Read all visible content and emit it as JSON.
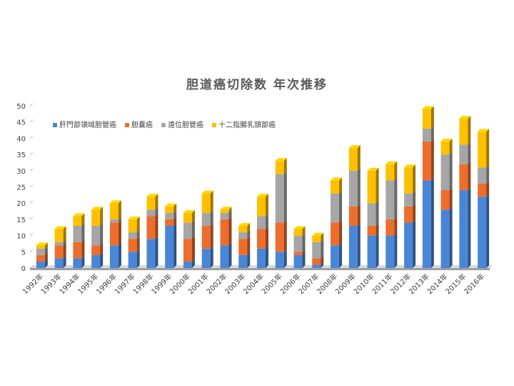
{
  "chart_data": {
    "type": "bar",
    "stacked": true,
    "title": "胆道癌切除数  年次推移",
    "categories": [
      "1992年",
      "1993年",
      "1994年",
      "1995年",
      "1996年",
      "1997年",
      "1998年",
      "1999年",
      "2000年",
      "2001年",
      "2002年",
      "2003年",
      "2004年",
      "2005年",
      "2006年",
      "2007年",
      "2008年",
      "2009年",
      "2010年",
      "2011年",
      "2012年",
      "2013年",
      "2014年",
      "2015年",
      "2016年"
    ],
    "ylim": [
      0,
      50
    ],
    "yticks": [
      0,
      5,
      10,
      15,
      20,
      25,
      30,
      35,
      40,
      45,
      50
    ],
    "grid": false,
    "legend_position": "top-left",
    "series": [
      {
        "name": "肝門部領域胆管癌",
        "color": "#4a86d6",
        "values": [
          2,
          3,
          3,
          4,
          7,
          5,
          9,
          13,
          2,
          6,
          7,
          4,
          6,
          5,
          4,
          1,
          7,
          13,
          10,
          10,
          14,
          27,
          18,
          24,
          22
        ]
      },
      {
        "name": "胆嚢癌",
        "color": "#ed6d2d",
        "values": [
          2,
          4,
          5,
          3,
          7,
          4,
          7,
          2,
          7,
          7,
          8,
          5,
          6,
          9,
          1,
          2,
          7,
          6,
          3,
          5,
          5,
          12,
          6,
          8,
          4
        ]
      },
      {
        "name": "遠位胆管癌",
        "color": "#a6a6a6",
        "values": [
          2,
          1,
          5,
          6,
          1,
          2,
          2,
          2,
          5,
          4,
          2,
          2,
          4,
          15,
          5,
          5,
          9,
          11,
          7,
          12,
          4,
          4,
          11,
          6,
          5
        ]
      },
      {
        "name": "十二指腸乳頭部癌",
        "color": "#ffc000",
        "values": [
          1,
          4,
          3,
          5,
          5,
          4,
          4,
          2,
          3,
          6,
          1,
          2,
          6,
          4,
          2,
          2,
          4,
          7,
          10,
          5,
          8,
          6,
          4,
          8,
          11
        ]
      }
    ]
  }
}
